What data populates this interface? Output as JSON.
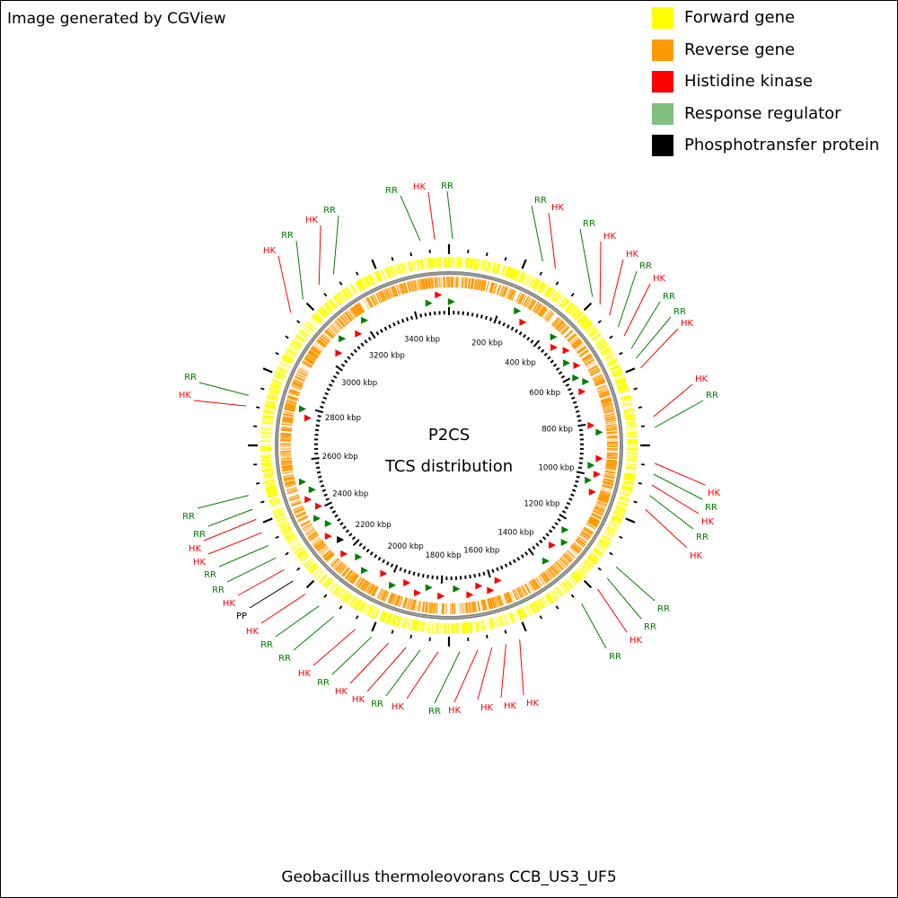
{
  "credit": "Image generated by CGView",
  "legend": [
    {
      "label": "Forward gene",
      "color": "#ffff00"
    },
    {
      "label": "Reverse gene",
      "color": "#ff9900"
    },
    {
      "label": "Histidine kinase",
      "color": "#ff0000"
    },
    {
      "label": "Response regulator",
      "color": "#80c080"
    },
    {
      "label": "Phosphotransfer protein",
      "color": "#000000"
    }
  ],
  "center_title": "P2CS",
  "center_subtitle": "TCS distribution",
  "footer": "Geobacillus thermoleovorans CCB_US3_UF5",
  "ruler": {
    "unit": "kbp",
    "labels": [
      "200 kbp",
      "400 kbp",
      "600 kbp",
      "800 kbp",
      "1000 kbp",
      "1200 kbp",
      "1400 kbp",
      "1600 kbp",
      "1800 kbp",
      "2000 kbp",
      "2200 kbp",
      "2400 kbp",
      "2600 kbp",
      "2800 kbp",
      "3000 kbp",
      "3200 kbp",
      "3400 kbp"
    ]
  },
  "features": [
    {
      "label": "RR",
      "type": "RR"
    },
    {
      "label": "HK",
      "type": "HK"
    },
    {
      "label": "RR",
      "type": "RR"
    },
    {
      "label": "RR",
      "type": "RR"
    },
    {
      "label": "HK",
      "type": "HK"
    },
    {
      "label": "RR",
      "type": "RR"
    },
    {
      "label": "HK",
      "type": "HK"
    },
    {
      "label": "HK",
      "type": "HK"
    },
    {
      "label": "RR",
      "type": "RR"
    },
    {
      "label": "HK",
      "type": "HK"
    },
    {
      "label": "RR",
      "type": "RR"
    },
    {
      "label": "RR",
      "type": "RR"
    },
    {
      "label": "HK",
      "type": "HK"
    },
    {
      "label": "HK",
      "type": "HK"
    },
    {
      "label": "RR",
      "type": "RR"
    },
    {
      "label": "HK",
      "type": "HK"
    },
    {
      "label": "RR",
      "type": "RR"
    },
    {
      "label": "HK",
      "type": "HK"
    },
    {
      "label": "HK",
      "type": "HK"
    },
    {
      "label": "RR",
      "type": "RR"
    },
    {
      "label": "RR",
      "type": "RR"
    },
    {
      "label": "RR",
      "type": "RR"
    },
    {
      "label": "HK",
      "type": "HK"
    },
    {
      "label": "RR",
      "type": "RR"
    },
    {
      "label": "HK",
      "type": "HK"
    },
    {
      "label": "HK",
      "type": "HK"
    },
    {
      "label": "HK",
      "type": "HK"
    },
    {
      "label": "HK",
      "type": "HK"
    },
    {
      "label": "RR",
      "type": "RR"
    },
    {
      "label": "HK",
      "type": "HK"
    },
    {
      "label": "RR",
      "type": "RR"
    },
    {
      "label": "HK",
      "type": "HK"
    },
    {
      "label": "HK",
      "type": "HK"
    },
    {
      "label": "RR",
      "type": "RR"
    },
    {
      "label": "HK",
      "type": "HK"
    },
    {
      "label": "RR",
      "type": "RR"
    },
    {
      "label": "RR",
      "type": "RR"
    },
    {
      "label": "HK",
      "type": "HK"
    },
    {
      "label": "PP",
      "type": "PP"
    },
    {
      "label": "HK",
      "type": "HK"
    },
    {
      "label": "RR",
      "type": "RR"
    },
    {
      "label": "RR",
      "type": "RR"
    },
    {
      "label": "HK",
      "type": "HK"
    },
    {
      "label": "HK",
      "type": "HK"
    },
    {
      "label": "RR",
      "type": "RR"
    },
    {
      "label": "RR",
      "type": "RR"
    },
    {
      "label": "HK",
      "type": "HK"
    },
    {
      "label": "RR",
      "type": "RR"
    },
    {
      "label": "HK",
      "type": "HK"
    },
    {
      "label": "RR",
      "type": "RR"
    },
    {
      "label": "HK",
      "type": "HK"
    },
    {
      "label": "RR",
      "type": "RR"
    },
    {
      "label": "HK",
      "type": "HK"
    },
    {
      "label": "RR",
      "type": "RR"
    },
    {
      "label": "HK",
      "type": "HK"
    },
    {
      "label": "RR",
      "type": "RR"
    }
  ]
}
